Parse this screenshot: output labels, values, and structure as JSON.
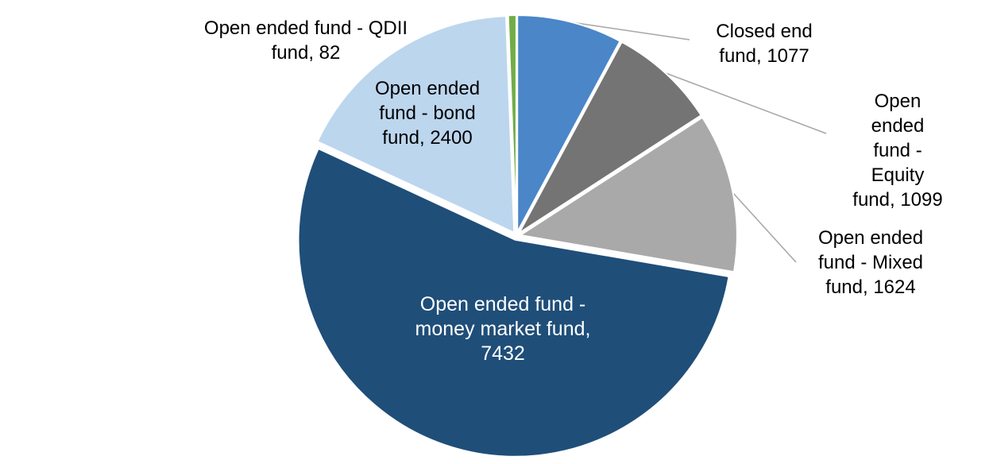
{
  "chart_data": {
    "type": "pie",
    "title": "",
    "slices": [
      {
        "label": "Closed end fund",
        "value": 1077,
        "color": "#4a86c8"
      },
      {
        "label": "Open ended fund - Equity fund",
        "value": 1099,
        "color": "#747474"
      },
      {
        "label": "Open ended fund - Mixed fund",
        "value": 1624,
        "color": "#a9a9a9"
      },
      {
        "label": "Open ended fund - money market fund",
        "value": 7432,
        "color": "#1f4e79"
      },
      {
        "label": "Open ended fund - bond fund",
        "value": 2400,
        "color": "#bcd6ee"
      },
      {
        "label": "Open ended fund - QDII fund",
        "value": 82,
        "color": "#70ad47"
      }
    ],
    "start_angle_deg": -90,
    "direction": "clockwise",
    "legend": "none",
    "data_labels_format": "label, value",
    "leader_line_color": "#a6a6a6"
  },
  "labels": {
    "qdii": "Open ended fund - QDII\nfund, 82",
    "bond": "Open ended\nfund - bond\nfund, 2400",
    "money_market": "Open ended fund -\nmoney market fund,\n7432",
    "closed_end": "Closed end\nfund, 1077",
    "equity": "Open ended\nfund - Equity\nfund, 1099",
    "mixed": "Open ended\nfund - Mixed\nfund, 1624"
  }
}
